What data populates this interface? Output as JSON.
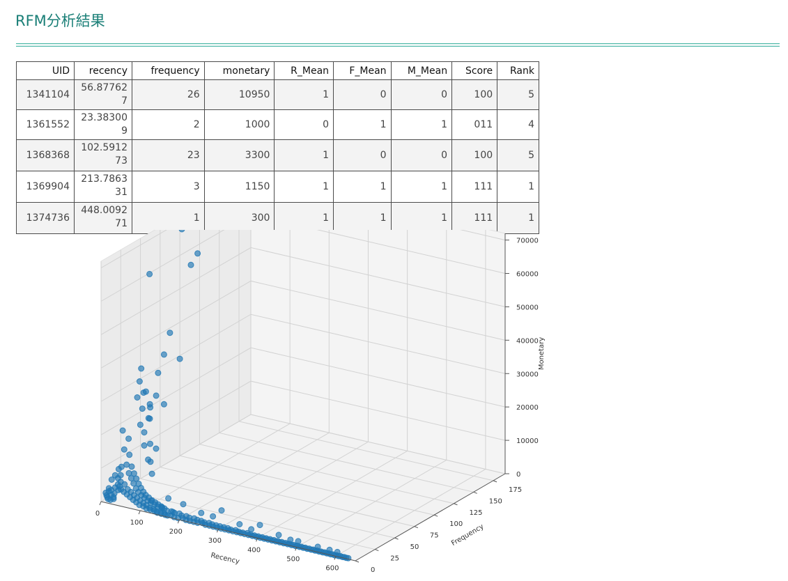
{
  "page": {
    "title": "RFM分析結果"
  },
  "table": {
    "columns": [
      "UID",
      "recency",
      "frequency",
      "monetary",
      "R_Mean",
      "F_Mean",
      "M_Mean",
      "Score",
      "Rank"
    ],
    "rows": [
      [
        "1341104",
        "56.877627",
        "26",
        "10950",
        "1",
        "0",
        "0",
        "100",
        "5"
      ],
      [
        "1361552",
        "23.383009",
        "2",
        "1000",
        "0",
        "1",
        "1",
        "011",
        "4"
      ],
      [
        "1368368",
        "102.591273",
        "23",
        "3300",
        "1",
        "0",
        "0",
        "100",
        "5"
      ],
      [
        "1369904",
        "213.786331",
        "3",
        "1150",
        "1",
        "1",
        "1",
        "111",
        "1"
      ],
      [
        "1374736",
        "448.009271",
        "1",
        "300",
        "1",
        "1",
        "1",
        "111",
        "1"
      ]
    ]
  },
  "chart_data": {
    "type": "scatter",
    "subtype": "scatter3d",
    "title": "",
    "xlabel": "Recency",
    "ylabel": "Frequency",
    "zlabel": "Monetary",
    "xlim": [
      0,
      650
    ],
    "ylim": [
      0,
      190
    ],
    "zlim": [
      0,
      72000
    ],
    "xticks": [
      "0",
      "100",
      "200",
      "300",
      "400",
      "500",
      "600"
    ],
    "yticks": [
      "0",
      "25",
      "50",
      "75",
      "100",
      "125",
      "150",
      "175"
    ],
    "zticks": [
      "0",
      "10000",
      "20000",
      "30000",
      "40000",
      "50000",
      "60000",
      "70000"
    ],
    "grid": true,
    "marker_color": "#1f77b4",
    "points": [
      [
        5,
        100,
        68000
      ],
      [
        5,
        120,
        58000
      ],
      [
        8,
        110,
        56000
      ],
      [
        3,
        60,
        60000
      ],
      [
        15,
        80,
        40000
      ],
      [
        20,
        70,
        35000
      ],
      [
        25,
        60,
        31000
      ],
      [
        10,
        95,
        30000
      ],
      [
        30,
        55,
        25000
      ],
      [
        40,
        60,
        22000
      ],
      [
        12,
        45,
        34000
      ],
      [
        18,
        40,
        31000
      ],
      [
        22,
        35,
        27000
      ],
      [
        35,
        45,
        23000
      ],
      [
        45,
        38,
        21000
      ],
      [
        50,
        30,
        18000
      ],
      [
        8,
        50,
        26000
      ],
      [
        14,
        55,
        22000
      ],
      [
        28,
        48,
        19000
      ],
      [
        55,
        35,
        14000
      ],
      [
        60,
        40,
        12000
      ],
      [
        70,
        28,
        10000
      ],
      [
        5,
        25,
        18000
      ],
      [
        10,
        30,
        15000
      ],
      [
        15,
        22,
        13000
      ],
      [
        20,
        26,
        11000
      ],
      [
        25,
        20,
        9000
      ],
      [
        30,
        24,
        8000
      ],
      [
        35,
        18,
        7000
      ],
      [
        40,
        22,
        6500
      ],
      [
        45,
        16,
        6000
      ],
      [
        50,
        20,
        5500
      ],
      [
        55,
        14,
        5000
      ],
      [
        60,
        18,
        4500
      ],
      [
        65,
        12,
        4000
      ],
      [
        70,
        16,
        3800
      ],
      [
        75,
        10,
        3500
      ],
      [
        80,
        14,
        3200
      ],
      [
        85,
        9,
        3000
      ],
      [
        90,
        12,
        2800
      ],
      [
        95,
        8,
        2600
      ],
      [
        100,
        11,
        2400
      ],
      [
        105,
        7,
        2200
      ],
      [
        110,
        10,
        2000
      ],
      [
        115,
        6,
        1900
      ],
      [
        120,
        9,
        1800
      ],
      [
        125,
        6,
        1700
      ],
      [
        130,
        8,
        1600
      ],
      [
        135,
        5,
        1500
      ],
      [
        140,
        7,
        1400
      ],
      [
        145,
        5,
        1300
      ],
      [
        150,
        6,
        1200
      ],
      [
        160,
        4,
        1100
      ],
      [
        170,
        5,
        1000
      ],
      [
        180,
        4,
        950
      ],
      [
        190,
        5,
        900
      ],
      [
        200,
        3,
        850
      ],
      [
        210,
        4,
        800
      ],
      [
        220,
        3,
        750
      ],
      [
        230,
        4,
        700
      ],
      [
        240,
        3,
        650
      ],
      [
        250,
        3,
        600
      ],
      [
        260,
        2,
        580
      ],
      [
        270,
        3,
        560
      ],
      [
        280,
        2,
        540
      ],
      [
        290,
        2,
        520
      ],
      [
        300,
        2,
        500
      ],
      [
        310,
        2,
        480
      ],
      [
        320,
        2,
        460
      ],
      [
        330,
        1,
        440
      ],
      [
        340,
        2,
        420
      ],
      [
        350,
        1,
        400
      ],
      [
        360,
        1,
        390
      ],
      [
        370,
        2,
        380
      ],
      [
        380,
        1,
        370
      ],
      [
        390,
        1,
        360
      ],
      [
        400,
        1,
        350
      ],
      [
        410,
        1,
        340
      ],
      [
        420,
        1,
        330
      ],
      [
        430,
        1,
        320
      ],
      [
        440,
        1,
        310
      ],
      [
        450,
        1,
        300
      ],
      [
        460,
        1,
        290
      ],
      [
        470,
        1,
        280
      ],
      [
        480,
        1,
        270
      ],
      [
        490,
        1,
        260
      ],
      [
        500,
        1,
        250
      ],
      [
        510,
        1,
        240
      ],
      [
        520,
        1,
        230
      ],
      [
        530,
        1,
        220
      ],
      [
        540,
        1,
        210
      ],
      [
        550,
        1,
        200
      ],
      [
        560,
        1,
        190
      ],
      [
        570,
        1,
        180
      ],
      [
        580,
        1,
        170
      ],
      [
        590,
        1,
        160
      ],
      [
        600,
        1,
        150
      ],
      [
        610,
        1,
        140
      ],
      [
        620,
        1,
        130
      ],
      [
        630,
        1,
        120
      ],
      [
        2,
        5,
        2000
      ],
      [
        4,
        8,
        3000
      ],
      [
        6,
        4,
        1500
      ],
      [
        8,
        6,
        2500
      ],
      [
        10,
        3,
        1200
      ],
      [
        12,
        7,
        2800
      ],
      [
        14,
        2,
        900
      ],
      [
        16,
        5,
        1800
      ],
      [
        18,
        9,
        3500
      ],
      [
        20,
        2,
        800
      ],
      [
        22,
        6,
        2200
      ],
      [
        24,
        4,
        1400
      ],
      [
        26,
        3,
        1100
      ],
      [
        28,
        8,
        3100
      ],
      [
        3,
        12,
        5000
      ],
      [
        6,
        15,
        6000
      ],
      [
        9,
        18,
        7500
      ],
      [
        12,
        20,
        8000
      ],
      [
        15,
        14,
        5500
      ],
      [
        18,
        16,
        6200
      ],
      [
        21,
        11,
        4200
      ],
      [
        24,
        13,
        4800
      ],
      [
        27,
        10,
        3900
      ],
      [
        33,
        9,
        3300
      ],
      [
        36,
        12,
        4500
      ],
      [
        42,
        8,
        3000
      ],
      [
        48,
        10,
        3600
      ],
      [
        52,
        7,
        2600
      ],
      [
        58,
        9,
        3200
      ],
      [
        62,
        6,
        2200
      ],
      [
        68,
        8,
        2700
      ],
      [
        72,
        5,
        1800
      ],
      [
        78,
        7,
        2300
      ],
      [
        82,
        4,
        1500
      ],
      [
        88,
        6,
        1900
      ],
      [
        92,
        3,
        1100
      ],
      [
        98,
        5,
        1600
      ],
      [
        102,
        3,
        1000
      ],
      [
        108,
        4,
        1300
      ],
      [
        112,
        2,
        700
      ],
      [
        118,
        3,
        900
      ],
      [
        122,
        2,
        650
      ],
      [
        128,
        3,
        850
      ],
      [
        132,
        2,
        600
      ],
      [
        138,
        2,
        550
      ],
      [
        142,
        1,
        400
      ],
      [
        148,
        2,
        500
      ],
      [
        152,
        1,
        350
      ],
      [
        158,
        2,
        450
      ],
      [
        162,
        1,
        300
      ],
      [
        168,
        1,
        280
      ],
      [
        175,
        2,
        400
      ],
      [
        185,
        1,
        260
      ],
      [
        195,
        1,
        240
      ],
      [
        205,
        2,
        330
      ],
      [
        215,
        1,
        220
      ],
      [
        225,
        1,
        210
      ],
      [
        235,
        1,
        200
      ],
      [
        245,
        1,
        190
      ],
      [
        255,
        2,
        280
      ],
      [
        265,
        1,
        170
      ],
      [
        275,
        1,
        160
      ],
      [
        285,
        1,
        150
      ],
      [
        295,
        1,
        140
      ],
      [
        305,
        1,
        135
      ],
      [
        315,
        1,
        130
      ],
      [
        325,
        1,
        125
      ],
      [
        335,
        1,
        120
      ],
      [
        345,
        1,
        115
      ],
      [
        355,
        1,
        110
      ],
      [
        365,
        1,
        105
      ],
      [
        375,
        1,
        100
      ],
      [
        385,
        1,
        98
      ],
      [
        395,
        1,
        96
      ],
      [
        405,
        1,
        94
      ],
      [
        415,
        1,
        92
      ],
      [
        425,
        1,
        90
      ],
      [
        435,
        1,
        88
      ],
      [
        445,
        1,
        86
      ],
      [
        455,
        1,
        84
      ],
      [
        465,
        1,
        82
      ],
      [
        475,
        1,
        80
      ],
      [
        485,
        1,
        78
      ],
      [
        495,
        1,
        76
      ],
      [
        505,
        1,
        74
      ],
      [
        515,
        1,
        72
      ],
      [
        525,
        1,
        70
      ],
      [
        535,
        1,
        68
      ],
      [
        545,
        1,
        66
      ],
      [
        555,
        1,
        64
      ],
      [
        565,
        1,
        62
      ],
      [
        575,
        1,
        60
      ],
      [
        585,
        1,
        58
      ],
      [
        595,
        1,
        56
      ],
      [
        605,
        1,
        54
      ],
      [
        615,
        1,
        52
      ],
      [
        625,
        1,
        50
      ],
      [
        150,
        3,
        2000
      ],
      [
        200,
        5,
        4000
      ],
      [
        250,
        3,
        3000
      ],
      [
        300,
        4,
        5000
      ],
      [
        350,
        2,
        2500
      ],
      [
        400,
        3,
        3500
      ],
      [
        450,
        2,
        2000
      ],
      [
        500,
        2,
        1500
      ],
      [
        550,
        2,
        1200
      ],
      [
        600,
        2,
        1000
      ],
      [
        180,
        2,
        1500
      ],
      [
        280,
        3,
        2800
      ],
      [
        380,
        2,
        1800
      ],
      [
        480,
        2,
        1400
      ],
      [
        580,
        2,
        1100
      ],
      [
        120,
        4,
        3000
      ],
      [
        160,
        6,
        4500
      ],
      [
        100,
        15,
        9000
      ],
      [
        80,
        20,
        12000
      ],
      [
        60,
        25,
        15000
      ],
      [
        40,
        30,
        20000
      ],
      [
        35,
        35,
        24000
      ],
      [
        30,
        42,
        28000
      ]
    ]
  }
}
